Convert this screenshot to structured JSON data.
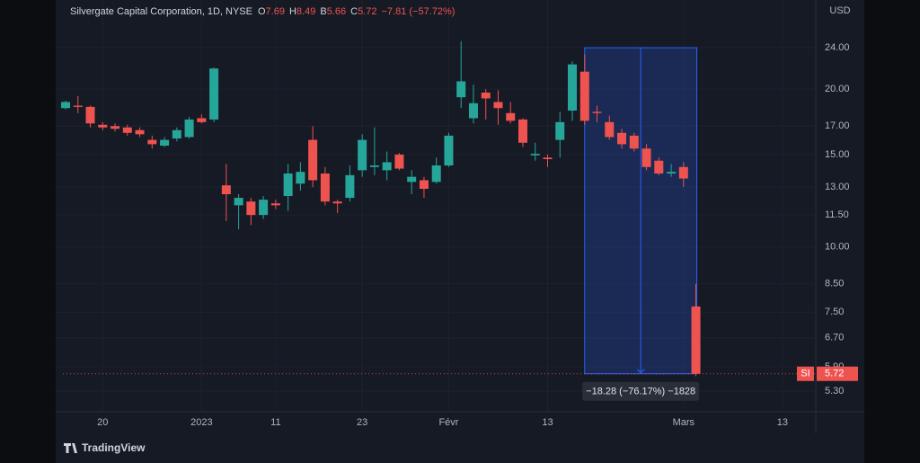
{
  "chart_data": {
    "type": "candlestick",
    "title": "Silvergate Capital Corporation, 1D, NYSE",
    "ohlc_labels": [
      "O",
      "H",
      "B",
      "C"
    ],
    "change_label": "−7.81 (−57.72%)",
    "ticker": "SI",
    "currency": "USD",
    "brand": "TradingView",
    "up_color": "#26a69a",
    "down_color": "#ef5350",
    "log_scale": true,
    "grid": true,
    "open": [
      18.4,
      18.6,
      18.5,
      17.1,
      17.0,
      16.9,
      16.7,
      16.0,
      15.6,
      16.1,
      16.2,
      17.6,
      17.5,
      13.1,
      12.0,
      12.2,
      11.5,
      12.1,
      12.5,
      13.2,
      16.0,
      13.8,
      12.2,
      12.4,
      14.0,
      14.2,
      14.0,
      15.0,
      13.3,
      13.4,
      13.3,
      14.3,
      19.3,
      17.6,
      19.7,
      18.9,
      18.0,
      17.5,
      14.95,
      14.8,
      16.0,
      18.2,
      21.6,
      18.1,
      17.3,
      16.5,
      16.3,
      15.4,
      14.6,
      13.8,
      14.2,
      7.69
    ],
    "high": [
      19.0,
      19.4,
      18.6,
      17.3,
      17.2,
      17.1,
      16.9,
      16.3,
      16.2,
      16.9,
      17.7,
      17.9,
      22.0,
      14.4,
      12.6,
      12.4,
      12.5,
      12.3,
      14.4,
      14.5,
      17.0,
      14.2,
      12.3,
      14.3,
      16.4,
      16.9,
      15.2,
      15.1,
      14.0,
      13.6,
      14.8,
      16.5,
      24.7,
      20.4,
      20.0,
      19.9,
      18.9,
      17.6,
      15.8,
      15.0,
      18.1,
      22.6,
      23.3,
      18.6,
      17.8,
      16.8,
      16.5,
      15.7,
      14.8,
      14.4,
      14.5,
      8.49
    ],
    "low": [
      18.3,
      18.0,
      16.9,
      16.7,
      16.6,
      16.3,
      16.2,
      15.4,
      15.5,
      15.9,
      16.1,
      17.2,
      17.3,
      11.2,
      10.8,
      11.0,
      11.3,
      11.8,
      11.7,
      12.8,
      13.0,
      12.0,
      11.6,
      12.2,
      13.6,
      13.7,
      13.4,
      14.0,
      12.6,
      12.4,
      13.2,
      14.2,
      18.4,
      17.2,
      17.5,
      17.1,
      17.2,
      15.5,
      14.6,
      14.2,
      14.8,
      17.4,
      17.1,
      17.3,
      16.0,
      15.4,
      15.2,
      14.0,
      13.7,
      13.6,
      13.0,
      5.66
    ],
    "close": [
      18.9,
      18.5,
      17.2,
      16.9,
      16.8,
      16.5,
      16.4,
      15.7,
      16.0,
      16.7,
      17.5,
      17.3,
      21.9,
      12.6,
      12.4,
      11.5,
      12.3,
      12.0,
      13.8,
      13.9,
      13.4,
      12.2,
      12.1,
      13.7,
      16.0,
      14.3,
      14.5,
      14.1,
      13.6,
      12.9,
      14.3,
      16.3,
      20.7,
      18.8,
      19.2,
      18.4,
      17.4,
      15.8,
      15.05,
      14.7,
      17.3,
      22.3,
      17.4,
      18.0,
      16.2,
      15.7,
      15.4,
      14.2,
      13.8,
      13.9,
      13.5,
      5.72
    ],
    "xlim": [
      -0.22,
      60.7
    ],
    "xticks": [
      {
        "value": 3,
        "label": "20"
      },
      {
        "value": 11,
        "label": "2023"
      },
      {
        "value": 17,
        "label": "11"
      },
      {
        "value": 24,
        "label": "23"
      },
      {
        "value": 31,
        "label": "Févr"
      },
      {
        "value": 39,
        "label": "13"
      },
      {
        "value": 50,
        "label": "Mars"
      },
      {
        "value": 58,
        "label": "13"
      }
    ],
    "ylim": [
      4.84,
      29.6
    ],
    "yticks": [
      {
        "value": 5.3,
        "label": "5.30"
      },
      {
        "value": 5.9,
        "label": "5.90"
      },
      {
        "value": 6.7,
        "label": "6.70"
      },
      {
        "value": 7.5,
        "label": "7.50"
      },
      {
        "value": 8.5,
        "label": "8.50"
      },
      {
        "value": 10,
        "label": "10.00"
      },
      {
        "value": 11.5,
        "label": "11.50"
      },
      {
        "value": 13,
        "label": "13.00"
      },
      {
        "value": 15,
        "label": "15.00"
      },
      {
        "value": 17,
        "label": "17.00"
      },
      {
        "value": 20,
        "label": "20.00"
      },
      {
        "value": 24,
        "label": "24.00"
      }
    ],
    "measure": {
      "start_index": 42,
      "end_index": 51,
      "values": [
        24,
        5.72
      ],
      "label": "−18.28 (−76.17%) −1828"
    }
  }
}
